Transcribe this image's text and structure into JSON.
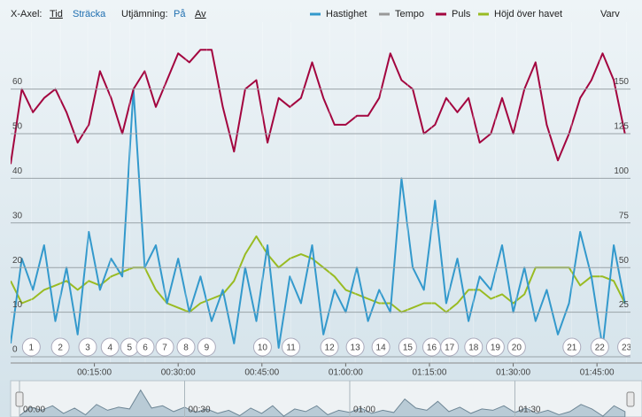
{
  "chart_data": {
    "type": "line",
    "controls": {
      "x_axis_label": "X-Axel:",
      "x_axis_options": [
        "Tid",
        "Sträcka"
      ],
      "smoothing_label": "Utjämning:",
      "smoothing_options": [
        "På",
        "Av"
      ]
    },
    "x": [
      0,
      2,
      4,
      6,
      8,
      10,
      12,
      14,
      16,
      18,
      20,
      22,
      24,
      26,
      28,
      30,
      32,
      34,
      36,
      38,
      40,
      42,
      44,
      46,
      48,
      50,
      52,
      54,
      56,
      58,
      60,
      62,
      64,
      66,
      68,
      70,
      72,
      74,
      76,
      78,
      80,
      82,
      84,
      86,
      88,
      90,
      92,
      94,
      96,
      98,
      100,
      102,
      104,
      106,
      108,
      110
    ],
    "xlim": [
      0,
      111
    ],
    "xticks": [
      {
        "value": 15,
        "label": "00:15:00"
      },
      {
        "value": 30,
        "label": "00:30:00"
      },
      {
        "value": 45,
        "label": "00:45:00"
      },
      {
        "value": 60,
        "label": "01:00:00"
      },
      {
        "value": 75,
        "label": "01:15:00"
      },
      {
        "value": 90,
        "label": "01:30:00"
      },
      {
        "value": 105,
        "label": "01:45:00"
      }
    ],
    "ylim": [
      0,
      75
    ],
    "yticks": [
      0,
      10,
      20,
      30,
      40,
      50,
      60
    ],
    "y2lim": [
      0,
      187.5
    ],
    "y2ticks": [
      25,
      50,
      75,
      100,
      125,
      150
    ],
    "grid": true,
    "series": [
      {
        "name": "Hastighet",
        "color": "#3399cc",
        "values": [
          3,
          22,
          15,
          25,
          8,
          20,
          5,
          28,
          15,
          22,
          18,
          60,
          20,
          25,
          12,
          22,
          10,
          18,
          8,
          15,
          3,
          20,
          8,
          25,
          2,
          18,
          12,
          25,
          5,
          15,
          10,
          20,
          8,
          15,
          10,
          40,
          20,
          15,
          35,
          12,
          22,
          8,
          18,
          15,
          25,
          10,
          20,
          8,
          15,
          5,
          12,
          28,
          18,
          2,
          25,
          12
        ]
      },
      {
        "name": "Tempo",
        "color": "#999999",
        "values": null
      },
      {
        "name": "Puls",
        "color": "#a3053f",
        "axis": "y2",
        "values": [
          108,
          150,
          137,
          145,
          150,
          137,
          120,
          130,
          160,
          145,
          125,
          150,
          160,
          140,
          155,
          170,
          165,
          172,
          172,
          140,
          115,
          150,
          155,
          120,
          145,
          140,
          145,
          165,
          145,
          130,
          130,
          135,
          135,
          145,
          170,
          155,
          150,
          125,
          130,
          145,
          137,
          145,
          120,
          125,
          145,
          125,
          150,
          165,
          130,
          110,
          125,
          145,
          155,
          170,
          155,
          125
        ]
      },
      {
        "name": "Höjd över havet",
        "color": "#99bb22",
        "values": [
          17,
          12,
          13,
          15,
          16,
          17,
          15,
          17,
          16,
          18,
          19,
          20,
          20,
          15,
          12,
          11,
          10,
          12,
          13,
          14,
          17,
          23,
          27,
          23,
          20,
          22,
          23,
          22,
          20,
          18,
          15,
          14,
          13,
          12,
          12,
          10,
          11,
          12,
          12,
          10,
          12,
          15,
          15,
          13,
          14,
          12,
          14,
          20,
          20,
          20,
          20,
          16,
          18,
          18,
          17,
          12
        ]
      },
      {
        "name": "Varv",
        "color": null,
        "values": null
      }
    ],
    "laps": [
      {
        "number": 1,
        "x": 3.7
      },
      {
        "number": 2,
        "x": 8.9
      },
      {
        "number": 3,
        "x": 13.8
      },
      {
        "number": 4,
        "x": 17.8
      },
      {
        "number": 5,
        "x": 21.3
      },
      {
        "number": 6,
        "x": 24.1
      },
      {
        "number": 7,
        "x": 27.6
      },
      {
        "number": 8,
        "x": 31.4
      },
      {
        "number": 9,
        "x": 35.1
      },
      {
        "number": 10,
        "x": 45.1
      },
      {
        "number": 11,
        "x": 50.2
      },
      {
        "number": 12,
        "x": 57.1
      },
      {
        "number": 13,
        "x": 61.7
      },
      {
        "number": 14,
        "x": 66.3
      },
      {
        "number": 15,
        "x": 71.1
      },
      {
        "number": 16,
        "x": 75.4
      },
      {
        "number": 17,
        "x": 78.6
      },
      {
        "number": 18,
        "x": 82.9
      },
      {
        "number": 19,
        "x": 86.8
      },
      {
        "number": 20,
        "x": 90.6
      },
      {
        "number": 21,
        "x": 100.5
      },
      {
        "number": 22,
        "x": 105.5
      },
      {
        "number": 23,
        "x": 110.3
      }
    ],
    "navigator": {
      "xticks": [
        {
          "value": 0,
          "label": "00:00"
        },
        {
          "value": 30,
          "label": "00:30"
        },
        {
          "value": 60,
          "label": "01:00"
        },
        {
          "value": 90,
          "label": "01:30"
        }
      ]
    }
  }
}
